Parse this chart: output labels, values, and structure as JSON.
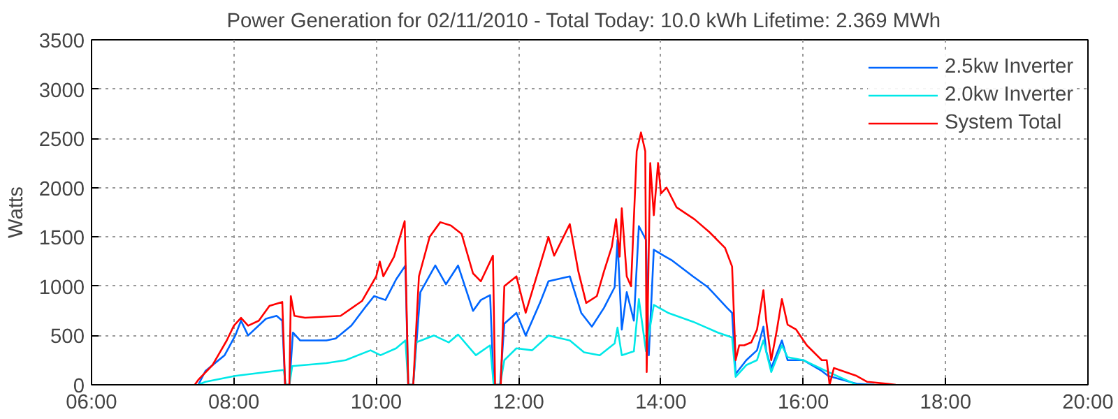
{
  "chart_data": {
    "type": "line",
    "title": "Power Generation for 02/11/2010 - Total Today: 10.0 kWh   Lifetime: 2.369 MWh",
    "ylabel": "Watts",
    "xlim": [
      6,
      20
    ],
    "xticks": [
      {
        "value": 6,
        "label": "06:00"
      },
      {
        "value": 8,
        "label": "08:00"
      },
      {
        "value": 10,
        "label": "10:00"
      },
      {
        "value": 12,
        "label": "12:00"
      },
      {
        "value": 14,
        "label": "14:00"
      },
      {
        "value": 16,
        "label": "16:00"
      },
      {
        "value": 18,
        "label": "18:00"
      },
      {
        "value": 20,
        "label": "20:00"
      }
    ],
    "ylim": [
      0,
      3500
    ],
    "yticks": [
      0,
      500,
      1000,
      1500,
      2000,
      2500,
      3000,
      3500
    ],
    "grid": true,
    "legend": "top right",
    "line_style": "solid",
    "series": [
      {
        "name": "2.5kw Inverter",
        "color": "#0066ff",
        "x": [
          7.5,
          7.6,
          7.87,
          8.02,
          8.1,
          8.2,
          8.45,
          8.6,
          8.68,
          8.72,
          8.78,
          8.83,
          8.93,
          9.3,
          9.43,
          9.65,
          9.86,
          9.97,
          10.13,
          10.28,
          10.41,
          10.45,
          10.52,
          10.62,
          10.83,
          10.98,
          11.15,
          11.36,
          11.47,
          11.6,
          11.65,
          11.74,
          11.8,
          11.97,
          12.1,
          12.3,
          12.42,
          12.72,
          12.88,
          13.03,
          13.2,
          13.35,
          13.39,
          13.45,
          13.52,
          13.62,
          13.69,
          13.79,
          13.83,
          13.9,
          14.04,
          14.16,
          14.45,
          14.66,
          14.93,
          15.0,
          15.05,
          15.2,
          15.35,
          15.44,
          15.48,
          15.55,
          15.7,
          15.78,
          16.0,
          16.26,
          16.35,
          16.75,
          17.0
        ],
        "values": [
          0,
          140,
          300,
          500,
          650,
          500,
          670,
          700,
          650,
          0,
          0,
          530,
          450,
          450,
          470,
          600,
          800,
          900,
          860,
          1070,
          1210,
          0,
          0,
          940,
          1210,
          1020,
          1210,
          750,
          860,
          910,
          0,
          0,
          620,
          730,
          500,
          830,
          1050,
          1100,
          730,
          590,
          780,
          990,
          1470,
          560,
          940,
          650,
          1610,
          1470,
          300,
          1370,
          1310,
          1260,
          1100,
          990,
          780,
          730,
          110,
          250,
          350,
          590,
          340,
          170,
          450,
          250,
          250,
          140,
          90,
          10,
          0
        ]
      },
      {
        "name": "2.0kw Inverter",
        "color": "#00e8e8",
        "x": [
          7.5,
          7.6,
          8.02,
          8.7,
          8.73,
          8.78,
          8.82,
          9.3,
          9.57,
          9.92,
          10.06,
          10.28,
          10.41,
          10.45,
          10.52,
          10.56,
          10.81,
          11.02,
          11.15,
          11.34,
          11.4,
          11.6,
          11.65,
          11.74,
          11.8,
          11.97,
          12.19,
          12.42,
          12.72,
          12.92,
          13.14,
          13.35,
          13.39,
          13.45,
          13.62,
          13.69,
          13.79,
          13.9,
          14.1,
          14.45,
          14.8,
          15.0,
          15.05,
          15.2,
          15.35,
          15.44,
          15.55,
          15.7,
          15.78,
          16.0,
          16.35,
          16.75,
          17.0
        ],
        "values": [
          0,
          30,
          90,
          150,
          0,
          0,
          190,
          220,
          250,
          350,
          300,
          370,
          450,
          0,
          0,
          430,
          500,
          430,
          510,
          350,
          300,
          400,
          0,
          0,
          250,
          370,
          350,
          500,
          450,
          330,
          300,
          420,
          580,
          300,
          340,
          870,
          340,
          810,
          730,
          640,
          530,
          480,
          80,
          200,
          250,
          450,
          130,
          400,
          280,
          250,
          130,
          0,
          0
        ]
      },
      {
        "name": "System Total",
        "color": "#ff0000",
        "x": [
          7.45,
          7.5,
          7.7,
          7.9,
          8.0,
          8.1,
          8.2,
          8.35,
          8.5,
          8.68,
          8.72,
          8.78,
          8.8,
          8.85,
          9.0,
          9.5,
          9.8,
          10.0,
          10.05,
          10.1,
          10.25,
          10.4,
          10.45,
          10.52,
          10.6,
          10.75,
          10.9,
          11.05,
          11.2,
          11.36,
          11.47,
          11.64,
          11.67,
          11.75,
          11.8,
          11.97,
          12.1,
          12.3,
          12.42,
          12.5,
          12.72,
          12.84,
          12.95,
          13.1,
          13.2,
          13.31,
          13.37,
          13.42,
          13.45,
          13.52,
          13.58,
          13.66,
          13.72,
          13.78,
          13.8,
          13.85,
          13.9,
          13.96,
          14.0,
          14.08,
          14.22,
          14.47,
          14.68,
          14.9,
          15.0,
          15.05,
          15.1,
          15.17,
          15.27,
          15.35,
          15.44,
          15.48,
          15.55,
          15.63,
          15.7,
          15.78,
          15.9,
          16.05,
          16.26,
          16.33,
          16.37,
          16.43,
          16.75,
          16.9,
          17.18,
          17.3
        ],
        "values": [
          0,
          50,
          200,
          450,
          600,
          680,
          600,
          650,
          800,
          840,
          0,
          0,
          900,
          700,
          680,
          700,
          850,
          1100,
          1250,
          1100,
          1300,
          1660,
          0,
          0,
          1100,
          1500,
          1650,
          1615,
          1530,
          1130,
          1050,
          1310,
          0,
          0,
          1000,
          1100,
          730,
          1210,
          1500,
          1310,
          1630,
          1150,
          830,
          900,
          1150,
          1400,
          1680,
          1300,
          1790,
          1100,
          1000,
          2370,
          2560,
          2370,
          130,
          2250,
          1720,
          2250,
          1940,
          2000,
          1800,
          1680,
          1550,
          1390,
          1200,
          250,
          400,
          400,
          430,
          560,
          960,
          650,
          250,
          560,
          870,
          610,
          560,
          400,
          250,
          250,
          0,
          170,
          90,
          30,
          10,
          0
        ]
      }
    ]
  }
}
